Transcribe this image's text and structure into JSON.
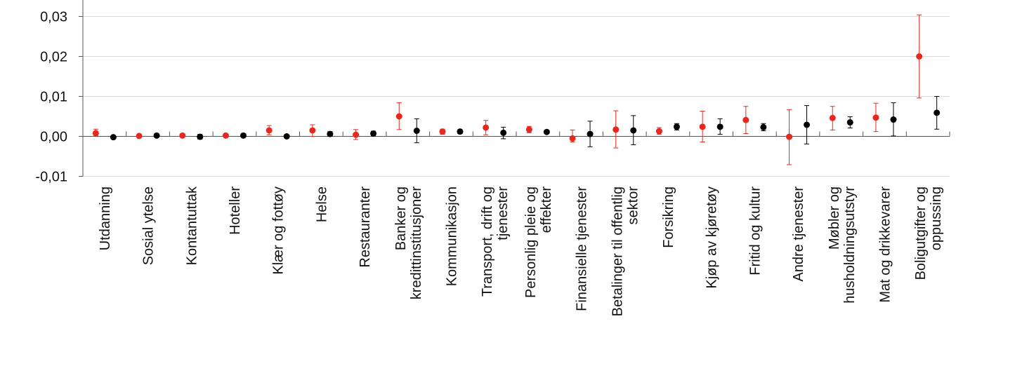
{
  "chart_data": {
    "type": "scatter",
    "subtype": "error-bar",
    "title": "",
    "xlabel": "",
    "ylabel": "",
    "ylim": [
      -0.01,
      0.03
    ],
    "yticks": [
      "-0,01",
      "0,00",
      "0,01",
      "0,02",
      "0,03"
    ],
    "ytick_values": [
      -0.01,
      0.0,
      0.01,
      0.02,
      0.03
    ],
    "grid": true,
    "legend": "none",
    "colors": {
      "series1": "#e8281e",
      "series2": "#000000",
      "grid": "#d9d9d9",
      "axis": "#555555"
    },
    "categories": [
      [
        "Utdanning"
      ],
      [
        "Sosial ytelse"
      ],
      [
        "Kontantuttak"
      ],
      [
        "Hoteller"
      ],
      [
        "Klær og fottøy"
      ],
      [
        "Helse"
      ],
      [
        "Restauranter"
      ],
      [
        "Banker og",
        "kredittinstitusjoner"
      ],
      [
        "Kommunikasjon"
      ],
      [
        "Transport, drift og",
        "tjenester"
      ],
      [
        "Personlig pleie og",
        "effekter"
      ],
      [
        "Finansielle tjenester"
      ],
      [
        "Betalinger til offentlig",
        "sektor"
      ],
      [
        "Forsikring"
      ],
      [
        "Kjøp av kjøretøy"
      ],
      [
        "Fritid og kultur"
      ],
      [
        "Andre tjenester"
      ],
      [
        "Møbler og",
        "husholdningsutstyr"
      ],
      [
        "Mat og drikkevarer"
      ],
      [
        "Boligutgifter og",
        "oppussing"
      ]
    ],
    "series": [
      {
        "color": "#e8281e",
        "values": [
          0.0008,
          0.0001,
          0.0002,
          0.0002,
          0.0015,
          0.0015,
          0.0004,
          0.005,
          0.0012,
          0.0022,
          0.0017,
          -0.0005,
          0.0017,
          0.0013,
          0.0024,
          0.0041,
          -0.0001,
          0.0046,
          0.0047,
          0.02
        ],
        "lower": [
          0.0001,
          -0.0002,
          0.0,
          0.0,
          0.0004,
          0.0,
          -0.0008,
          0.0017,
          0.0005,
          0.0004,
          0.0009,
          -0.0014,
          -0.0029,
          0.0005,
          -0.0014,
          0.0007,
          -0.0071,
          0.0016,
          0.0012,
          0.0096
        ],
        "upper": [
          0.0018,
          0.0004,
          0.0004,
          0.0004,
          0.0027,
          0.0029,
          0.0017,
          0.0084,
          0.0018,
          0.004,
          0.0025,
          0.0016,
          0.0064,
          0.0022,
          0.0063,
          0.0075,
          0.0067,
          0.0075,
          0.0083,
          0.0304
        ]
      },
      {
        "color": "#000000",
        "values": [
          -0.0002,
          0.0002,
          -0.0001,
          0.0002,
          0.0,
          0.0006,
          0.0007,
          0.0014,
          0.0012,
          0.0009,
          0.0011,
          0.0006,
          0.0015,
          0.0024,
          0.0024,
          0.0023,
          0.0029,
          0.0035,
          0.0042,
          0.0059
        ],
        "lower": [
          -0.0004,
          0.0,
          -0.0007,
          0.0,
          -0.0004,
          0.0,
          0.0001,
          -0.0016,
          0.0007,
          -0.0006,
          0.0007,
          -0.0026,
          -0.0021,
          0.0016,
          0.0005,
          0.0014,
          -0.0019,
          0.0021,
          0.0001,
          0.0018
        ],
        "upper": [
          0.0,
          0.0004,
          0.0005,
          0.0004,
          0.0004,
          0.0012,
          0.0013,
          0.0044,
          0.0017,
          0.0023,
          0.0015,
          0.0038,
          0.0052,
          0.0032,
          0.0044,
          0.0032,
          0.0077,
          0.0049,
          0.0084,
          0.01
        ]
      }
    ]
  }
}
